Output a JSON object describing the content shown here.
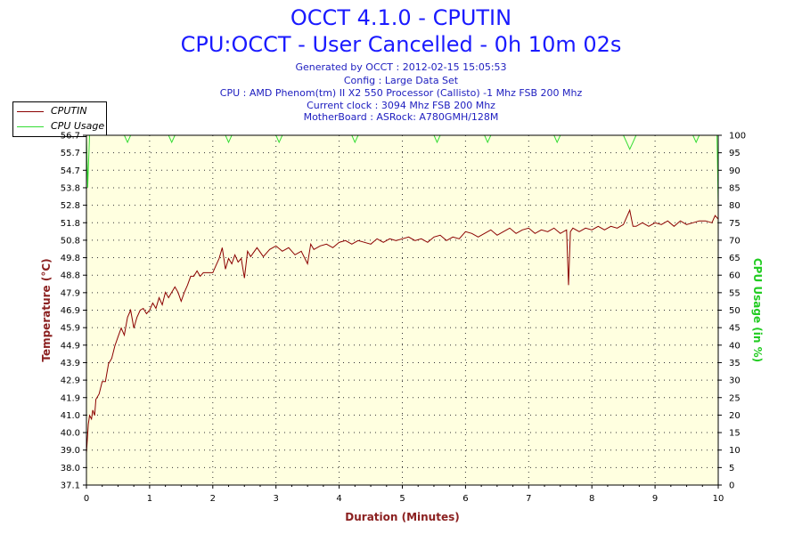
{
  "header": {
    "title": "OCCT 4.1.0 - CPUTIN",
    "subtitle": "CPU:OCCT - User Cancelled - 0h 10m 02s",
    "info": [
      "Generated by OCCT : 2012-02-15 15:05:53",
      "Config : Large Data Set",
      "CPU : AMD Phenom(tm) II X2 550 Processor (Callisto) -1 Mhz FSB 200 Mhz",
      "Current clock : 3094 Mhz FSB 200 Mhz",
      "MotherBoard : ASRock: A780GMH/128M"
    ]
  },
  "legend": {
    "items": [
      {
        "label": "CPUTIN",
        "color": "#8b0000"
      },
      {
        "label": "CPU Usage",
        "color": "#33dd33"
      }
    ]
  },
  "colors": {
    "plot_background": "#ffffe0",
    "grid": "#333333",
    "temperature": "#8b0000",
    "cpu_usage": "#33dd33",
    "title": "#1a1aff",
    "left_axis_label": "#8b2020",
    "right_axis_label": "#22cc22"
  },
  "chart_data": {
    "type": "line",
    "title": "OCCT 4.1.0 - CPUTIN",
    "xlabel": "Duration (Minutes)",
    "ylabel": "Temperature (°C)",
    "y2label": "CPU Usage (in %)",
    "xlim": [
      0,
      10
    ],
    "ylim": [
      37.1,
      56.7
    ],
    "y2lim": [
      0,
      100
    ],
    "grid": true,
    "legend_position": "top-left",
    "x_ticks": [
      "0",
      "1",
      "2",
      "3",
      "4",
      "5",
      "6",
      "7",
      "8",
      "9",
      "10"
    ],
    "y_ticks": [
      "56.7",
      "55.7",
      "54.7",
      "53.8",
      "52.8",
      "51.8",
      "50.8",
      "49.8",
      "48.8",
      "47.9",
      "46.9",
      "45.9",
      "44.9",
      "43.9",
      "42.9",
      "41.9",
      "41.0",
      "40.0",
      "39.0",
      "38.0",
      "37.1"
    ],
    "y2_ticks": [
      "100",
      "95",
      "90",
      "85",
      "80",
      "75",
      "70",
      "65",
      "60",
      "55",
      "50",
      "45",
      "40",
      "35",
      "30",
      "25",
      "20",
      "15",
      "10",
      "5",
      "0"
    ],
    "series": [
      {
        "name": "CPUTIN",
        "axis": "left",
        "x": [
          0,
          0.03,
          0.05,
          0.08,
          0.1,
          0.13,
          0.15,
          0.2,
          0.25,
          0.3,
          0.35,
          0.4,
          0.45,
          0.5,
          0.55,
          0.6,
          0.65,
          0.7,
          0.75,
          0.8,
          0.85,
          0.9,
          0.95,
          1.0,
          1.05,
          1.1,
          1.15,
          1.2,
          1.25,
          1.3,
          1.35,
          1.4,
          1.45,
          1.5,
          1.55,
          1.6,
          1.65,
          1.7,
          1.75,
          1.8,
          1.85,
          1.9,
          1.95,
          2.0,
          2.05,
          2.1,
          2.15,
          2.2,
          2.25,
          2.3,
          2.35,
          2.4,
          2.45,
          2.5,
          2.55,
          2.6,
          2.7,
          2.8,
          2.9,
          3.0,
          3.1,
          3.2,
          3.3,
          3.4,
          3.5,
          3.55,
          3.6,
          3.7,
          3.8,
          3.9,
          4.0,
          4.1,
          4.2,
          4.3,
          4.4,
          4.5,
          4.6,
          4.7,
          4.8,
          4.9,
          5.0,
          5.1,
          5.2,
          5.3,
          5.4,
          5.5,
          5.6,
          5.7,
          5.8,
          5.9,
          6.0,
          6.1,
          6.2,
          6.3,
          6.4,
          6.5,
          6.6,
          6.7,
          6.8,
          6.9,
          7.0,
          7.1,
          7.2,
          7.3,
          7.4,
          7.5,
          7.6,
          7.63,
          7.66,
          7.7,
          7.8,
          7.9,
          8.0,
          8.1,
          8.2,
          8.3,
          8.4,
          8.5,
          8.6,
          8.65,
          8.7,
          8.8,
          8.9,
          9.0,
          9.1,
          9.2,
          9.3,
          9.4,
          9.5,
          9.6,
          9.7,
          9.8,
          9.9,
          9.95,
          10.0
        ],
        "values": [
          38.9,
          40.5,
          41.0,
          40.8,
          41.3,
          41.0,
          41.9,
          42.2,
          42.9,
          42.9,
          43.9,
          44.2,
          44.9,
          45.4,
          45.9,
          45.5,
          46.5,
          46.9,
          45.9,
          46.5,
          46.9,
          47.0,
          46.7,
          46.9,
          47.3,
          47.0,
          47.6,
          47.2,
          47.9,
          47.6,
          47.9,
          48.2,
          47.9,
          47.4,
          47.9,
          48.3,
          48.8,
          48.8,
          49.1,
          48.8,
          49.0,
          49.0,
          49.0,
          49.0,
          49.4,
          49.8,
          50.4,
          49.2,
          49.8,
          49.5,
          50.0,
          49.6,
          49.8,
          48.7,
          50.2,
          49.9,
          50.4,
          49.9,
          50.3,
          50.5,
          50.2,
          50.4,
          50.0,
          50.2,
          49.5,
          50.6,
          50.3,
          50.5,
          50.6,
          50.4,
          50.7,
          50.8,
          50.6,
          50.8,
          50.7,
          50.6,
          50.9,
          50.7,
          50.9,
          50.8,
          50.9,
          51.0,
          50.8,
          50.9,
          50.7,
          51.0,
          51.1,
          50.8,
          51.0,
          50.9,
          51.3,
          51.2,
          51.0,
          51.2,
          51.4,
          51.1,
          51.3,
          51.5,
          51.2,
          51.4,
          51.5,
          51.2,
          51.4,
          51.3,
          51.5,
          51.2,
          51.4,
          48.3,
          51.3,
          51.5,
          51.3,
          51.5,
          51.4,
          51.6,
          51.4,
          51.6,
          51.5,
          51.7,
          52.5,
          51.6,
          51.6,
          51.8,
          51.6,
          51.8,
          51.7,
          51.9,
          51.6,
          51.9,
          51.7,
          51.8,
          51.9,
          51.9,
          51.8,
          52.2,
          52.0
        ]
      },
      {
        "name": "CPU Usage",
        "axis": "right",
        "x": [
          0,
          0.02,
          0.05,
          0.08,
          0.1,
          0.6,
          0.65,
          0.7,
          1.3,
          1.35,
          1.4,
          2.2,
          2.25,
          2.3,
          3.0,
          3.05,
          3.1,
          4.2,
          4.25,
          4.3,
          5.5,
          5.55,
          5.6,
          6.3,
          6.35,
          6.4,
          7.4,
          7.45,
          7.5,
          8.5,
          8.55,
          8.6,
          8.65,
          8.7,
          9.6,
          9.65,
          9.7,
          9.98,
          10.0
        ],
        "values": [
          100,
          85,
          100,
          100,
          100,
          100,
          98,
          100,
          100,
          98,
          100,
          100,
          98,
          100,
          100,
          98,
          100,
          100,
          98,
          100,
          100,
          98,
          100,
          100,
          98,
          100,
          100,
          98,
          100,
          100,
          98,
          96,
          98,
          100,
          100,
          98,
          100,
          100,
          80
        ]
      }
    ]
  }
}
